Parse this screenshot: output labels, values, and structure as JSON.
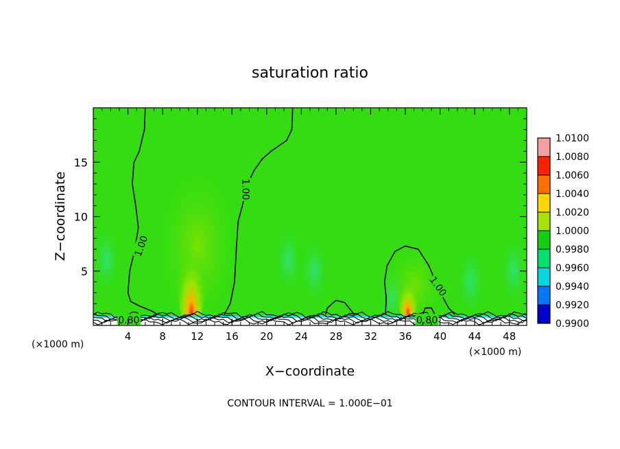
{
  "chart_data": {
    "type": "heatmap",
    "title": "saturation ratio",
    "xlabel": "X−coordinate",
    "ylabel": "Z−coordinate",
    "x_unit": "(×1000 m)",
    "xlim": [
      0,
      50
    ],
    "ylim": [
      0,
      20
    ],
    "x_ticks": [
      4,
      8,
      12,
      16,
      20,
      24,
      28,
      32,
      36,
      40,
      44,
      48
    ],
    "y_ticks": [
      5,
      10,
      15
    ],
    "footer": "CONTOUR INTERVAL = 1.000E−01",
    "contour_labels": [
      {
        "text": "1.00",
        "x": 5.5,
        "y": 7.3,
        "angle": -70
      },
      {
        "text": "1.00",
        "x": 17.6,
        "y": 12.5,
        "angle": 90
      },
      {
        "text": "1.00",
        "x": 39.8,
        "y": 3.6,
        "angle": 55
      },
      {
        "text": "0.80",
        "x": 4.1,
        "y": 0.5,
        "angle": 0
      },
      {
        "text": "0.80",
        "x": 38.5,
        "y": 0.5,
        "angle": 0
      }
    ],
    "colorbar": {
      "levels": [
        "1.0100",
        "1.0080",
        "1.0060",
        "1.0040",
        "1.0020",
        "1.0000",
        "0.9980",
        "0.9960",
        "0.9940",
        "0.9920",
        "0.9900"
      ],
      "colors": [
        "#f5a0a0",
        "#ff2000",
        "#ff7000",
        "#ffd700",
        "#a8e000",
        "#10d010",
        "#00e070",
        "#00d8e0",
        "#0078ff",
        "#0000cc",
        "#5000a0"
      ]
    },
    "field": {
      "background_value": 1.0005,
      "background_color": "#33dd11",
      "maxima": [
        {
          "x": 11.3,
          "y": 1.2,
          "value": 1.0085
        },
        {
          "x": 36.3,
          "y": 1.2,
          "value": 1.006
        }
      ],
      "minimum_layer": {
        "y_top": 0.8,
        "value": 0.99
      }
    }
  }
}
